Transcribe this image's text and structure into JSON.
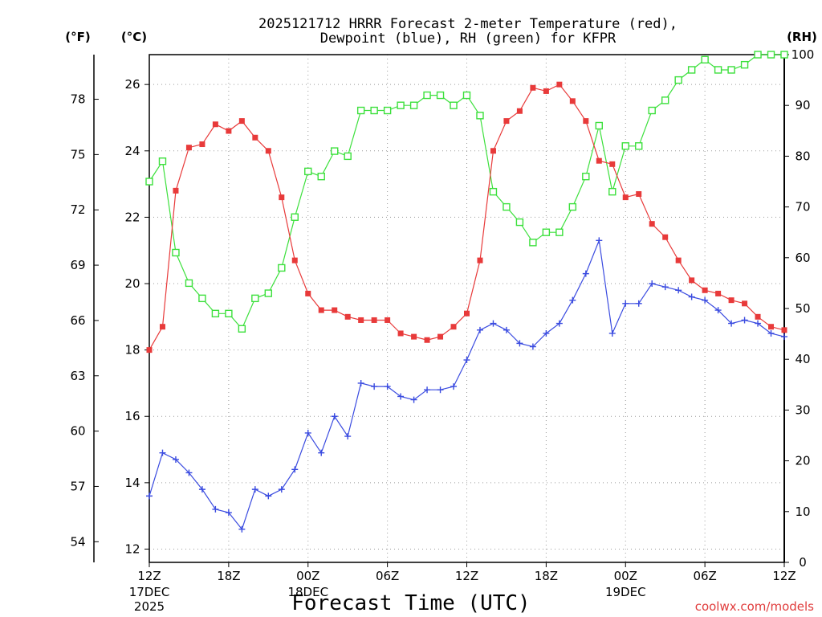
{
  "title": {
    "line1": "2025121712 HRRR Forecast 2-meter Temperature (red),",
    "line2": "Dewpoint (blue), RH (green) for KFPR"
  },
  "units": {
    "fahrenheit": "(°F)",
    "celsius": "(°C)",
    "rh": "(RH)"
  },
  "credit": "coolwx.com/models",
  "chart_data": {
    "type": "line",
    "xlabel": "Forecast Time (UTC)",
    "x_ticks": [
      {
        "hour": 0,
        "label": "12Z",
        "sub": [
          "17DEC",
          "2025"
        ]
      },
      {
        "hour": 6,
        "label": "18Z",
        "sub": []
      },
      {
        "hour": 12,
        "label": "00Z",
        "sub": [
          "18DEC"
        ]
      },
      {
        "hour": 18,
        "label": "06Z",
        "sub": []
      },
      {
        "hour": 24,
        "label": "12Z",
        "sub": []
      },
      {
        "hour": 30,
        "label": "18Z",
        "sub": []
      },
      {
        "hour": 36,
        "label": "00Z",
        "sub": [
          "19DEC"
        ]
      },
      {
        "hour": 42,
        "label": "06Z",
        "sub": []
      },
      {
        "hour": 48,
        "label": "12Z",
        "sub": []
      }
    ],
    "xlim": [
      0,
      48
    ],
    "y_celsius": {
      "lim": [
        11.6,
        26.9
      ],
      "ticks": [
        12,
        14,
        16,
        18,
        20,
        22,
        24,
        26
      ]
    },
    "y_fahrenheit": {
      "ticks": [
        54,
        57,
        60,
        63,
        66,
        69,
        72,
        75,
        78
      ]
    },
    "y_rh": {
      "lim": [
        0,
        100
      ],
      "ticks": [
        0,
        10,
        20,
        30,
        40,
        50,
        60,
        70,
        80,
        90,
        100
      ]
    },
    "grid": true,
    "series": [
      {
        "name": "Temperature",
        "axis": "celsius",
        "color": "#e83a3a",
        "marker": "filled-square",
        "values": [
          18.0,
          18.7,
          22.8,
          24.1,
          24.2,
          24.8,
          24.6,
          24.9,
          24.4,
          24.0,
          22.6,
          20.7,
          19.7,
          19.2,
          19.2,
          19.0,
          18.9,
          18.9,
          18.9,
          18.5,
          18.4,
          18.3,
          18.4,
          18.7,
          19.1,
          20.7,
          24.0,
          24.9,
          25.2,
          25.9,
          25.8,
          26.0,
          25.5,
          24.9,
          23.7,
          23.6,
          22.6,
          22.7,
          21.8,
          21.4,
          20.7,
          20.1,
          19.8,
          19.7,
          19.5,
          19.4,
          19.0,
          18.7,
          18.6
        ]
      },
      {
        "name": "Dewpoint",
        "axis": "celsius",
        "color": "#3a4be0",
        "marker": "plus",
        "values": [
          13.6,
          14.9,
          14.7,
          14.3,
          13.8,
          13.2,
          13.1,
          12.6,
          13.8,
          13.6,
          13.8,
          14.4,
          15.5,
          14.9,
          16.0,
          15.4,
          17.0,
          16.9,
          16.9,
          16.6,
          16.5,
          16.8,
          16.8,
          16.9,
          17.7,
          18.6,
          18.8,
          18.6,
          18.2,
          18.1,
          18.5,
          18.8,
          19.5,
          20.3,
          21.3,
          18.5,
          19.4,
          19.4,
          20.0,
          19.9,
          19.8,
          19.6,
          19.5,
          19.2,
          18.8,
          18.9,
          18.8,
          18.5,
          18.4
        ]
      },
      {
        "name": "RH",
        "axis": "rh",
        "color": "#3ce03c",
        "marker": "open-square",
        "values": [
          75,
          79,
          61,
          55,
          52,
          49,
          49,
          46,
          52,
          53,
          58,
          68,
          77,
          76,
          81,
          80,
          89,
          89,
          89,
          90,
          90,
          92,
          92,
          90,
          92,
          88,
          73,
          70,
          67,
          63,
          65,
          65,
          70,
          76,
          86,
          73,
          82,
          82,
          89,
          91,
          95,
          97,
          99,
          97,
          97,
          98,
          100,
          100,
          100
        ]
      }
    ]
  }
}
